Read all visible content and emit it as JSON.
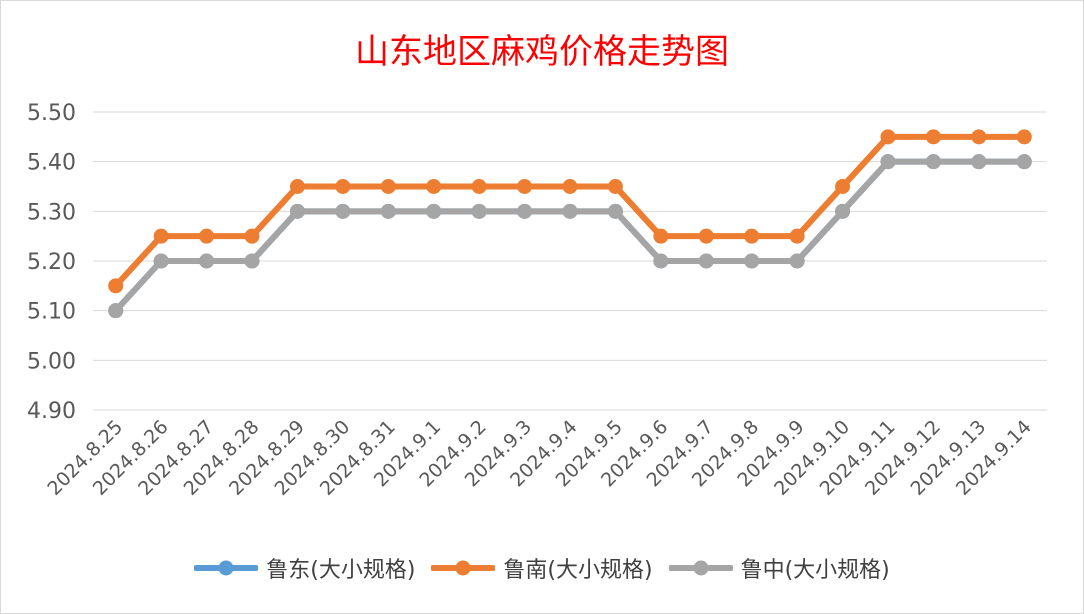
{
  "chart_data": {
    "type": "line",
    "title": "山东地区麻鸡价格走势图",
    "xlabel": "",
    "ylabel": "",
    "categories": [
      "2024.8.25",
      "2024.8.26",
      "2024.8.27",
      "2024.8.28",
      "2024.8.29",
      "2024.8.30",
      "2024.8.31",
      "2024.9.1",
      "2024.9.2",
      "2024.9.3",
      "2024.9.4",
      "2024.9.5",
      "2024.9.6",
      "2024.9.7",
      "2024.9.8",
      "2024.9.9",
      "2024.9.10",
      "2024.9.11",
      "2024.9.12",
      "2024.9.13",
      "2024.9.14"
    ],
    "ylim": [
      4.9,
      5.5
    ],
    "yticks": [
      "4.90",
      "5.00",
      "5.10",
      "5.20",
      "5.30",
      "5.40",
      "5.50"
    ],
    "grid": "horizontal",
    "legend_position": "bottom",
    "series": [
      {
        "name": "鲁东(大小规格)",
        "color": "#5b9bd5",
        "values": [
          5.1,
          5.2,
          5.2,
          5.2,
          5.3,
          5.3,
          5.3,
          5.3,
          5.3,
          5.3,
          5.3,
          5.3,
          5.2,
          5.2,
          5.2,
          5.2,
          5.3,
          5.4,
          5.4,
          5.4,
          5.4
        ]
      },
      {
        "name": "鲁南(大小规格)",
        "color": "#ed7d31",
        "values": [
          5.15,
          5.25,
          5.25,
          5.25,
          5.35,
          5.35,
          5.35,
          5.35,
          5.35,
          5.35,
          5.35,
          5.35,
          5.25,
          5.25,
          5.25,
          5.25,
          5.35,
          5.45,
          5.45,
          5.45,
          5.45
        ]
      },
      {
        "name": "鲁中(大小规格)",
        "color": "#a5a5a5",
        "values": [
          5.1,
          5.2,
          5.2,
          5.2,
          5.3,
          5.3,
          5.3,
          5.3,
          5.3,
          5.3,
          5.3,
          5.3,
          5.2,
          5.2,
          5.2,
          5.2,
          5.3,
          5.4,
          5.4,
          5.4,
          5.4
        ]
      }
    ]
  }
}
